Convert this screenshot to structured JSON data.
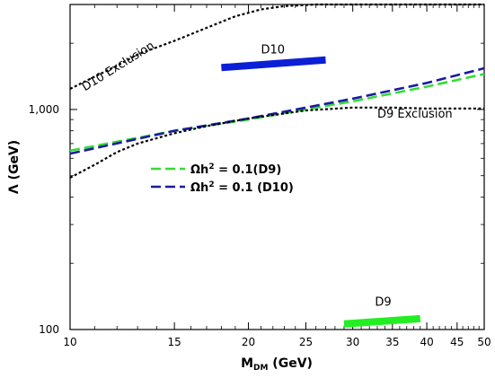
{
  "chart_data": {
    "type": "line",
    "title": "",
    "xlabel_main": "M",
    "xlabel_sub": "DM",
    "xlabel_unit": " (GeV)",
    "ylabel": "Λ (GeV)",
    "xscale": "log",
    "yscale": "log",
    "xlim": [
      10,
      50
    ],
    "ylim": [
      100,
      3000
    ],
    "xticks": [
      {
        "value": 10,
        "label": "10"
      },
      {
        "value": 15,
        "label": "15"
      },
      {
        "value": 20,
        "label": "20"
      },
      {
        "value": 25,
        "label": "25"
      },
      {
        "value": 30,
        "label": "30"
      },
      {
        "value": 35,
        "label": "35"
      },
      {
        "value": 40,
        "label": "40"
      },
      {
        "value": 45,
        "label": "45"
      },
      {
        "value": 50,
        "label": "50"
      }
    ],
    "yticks": [
      {
        "value": 100,
        "label": "100"
      },
      {
        "value": 1000,
        "label": "1,000"
      }
    ],
    "legend": {
      "placement": "center-left",
      "entries": [
        {
          "series": "relic_d9",
          "label_main": "Ωh",
          "label_sup": "2",
          "label_rest": " = 0.1(D9)"
        },
        {
          "series": "relic_d10",
          "label_main": "Ωh",
          "label_sup": "2",
          "label_rest": " = 0.1 (D10)"
        }
      ]
    },
    "series": [
      {
        "id": "relic_d9",
        "color": "#33dd33",
        "style": "dashed",
        "x": [
          10,
          15,
          20,
          30,
          40,
          50
        ],
        "y": [
          650,
          800,
          900,
          1090,
          1270,
          1450
        ]
      },
      {
        "id": "relic_d10",
        "color": "#1a1aa0",
        "style": "dashed",
        "x": [
          10,
          15,
          20,
          30,
          40,
          50
        ],
        "y": [
          630,
          800,
          910,
          1120,
          1320,
          1540
        ]
      },
      {
        "id": "d9_exclusion",
        "color": "#000000",
        "style": "dotted",
        "x": [
          10,
          11,
          12,
          13,
          15,
          17,
          20,
          25,
          30,
          35,
          40,
          50
        ],
        "y": [
          490,
          560,
          640,
          700,
          780,
          840,
          910,
          990,
          1020,
          1020,
          1010,
          1010
        ]
      },
      {
        "id": "d10_exclusion",
        "color": "#000000",
        "style": "dotted",
        "x": [
          10,
          11,
          12,
          13,
          15,
          17,
          19,
          21,
          23,
          26,
          30,
          40,
          50
        ],
        "y": [
          1240,
          1410,
          1580,
          1780,
          2050,
          2350,
          2650,
          2850,
          2950,
          3000,
          3000,
          3000,
          3000
        ]
      },
      {
        "id": "d10_band",
        "color": "#0b1fd6",
        "style": "thick",
        "x": [
          18,
          27
        ],
        "y": [
          1550,
          1680
        ]
      },
      {
        "id": "d9_band",
        "color": "#22ee22",
        "style": "thick",
        "x": [
          29,
          39
        ],
        "y": [
          106,
          112
        ]
      }
    ],
    "annotations": [
      {
        "id": "d10",
        "text": "D10",
        "x": 21,
        "y": 1800
      },
      {
        "id": "d9",
        "text": "D9",
        "x": 32.7,
        "y": 128
      },
      {
        "id": "d9_excl",
        "text": "D9 Exclusion",
        "x": 33,
        "y": 920
      },
      {
        "id": "d10_excl",
        "text": "D10 Exclusion",
        "x": 10.6,
        "y": 1210,
        "angle": -32
      }
    ]
  }
}
